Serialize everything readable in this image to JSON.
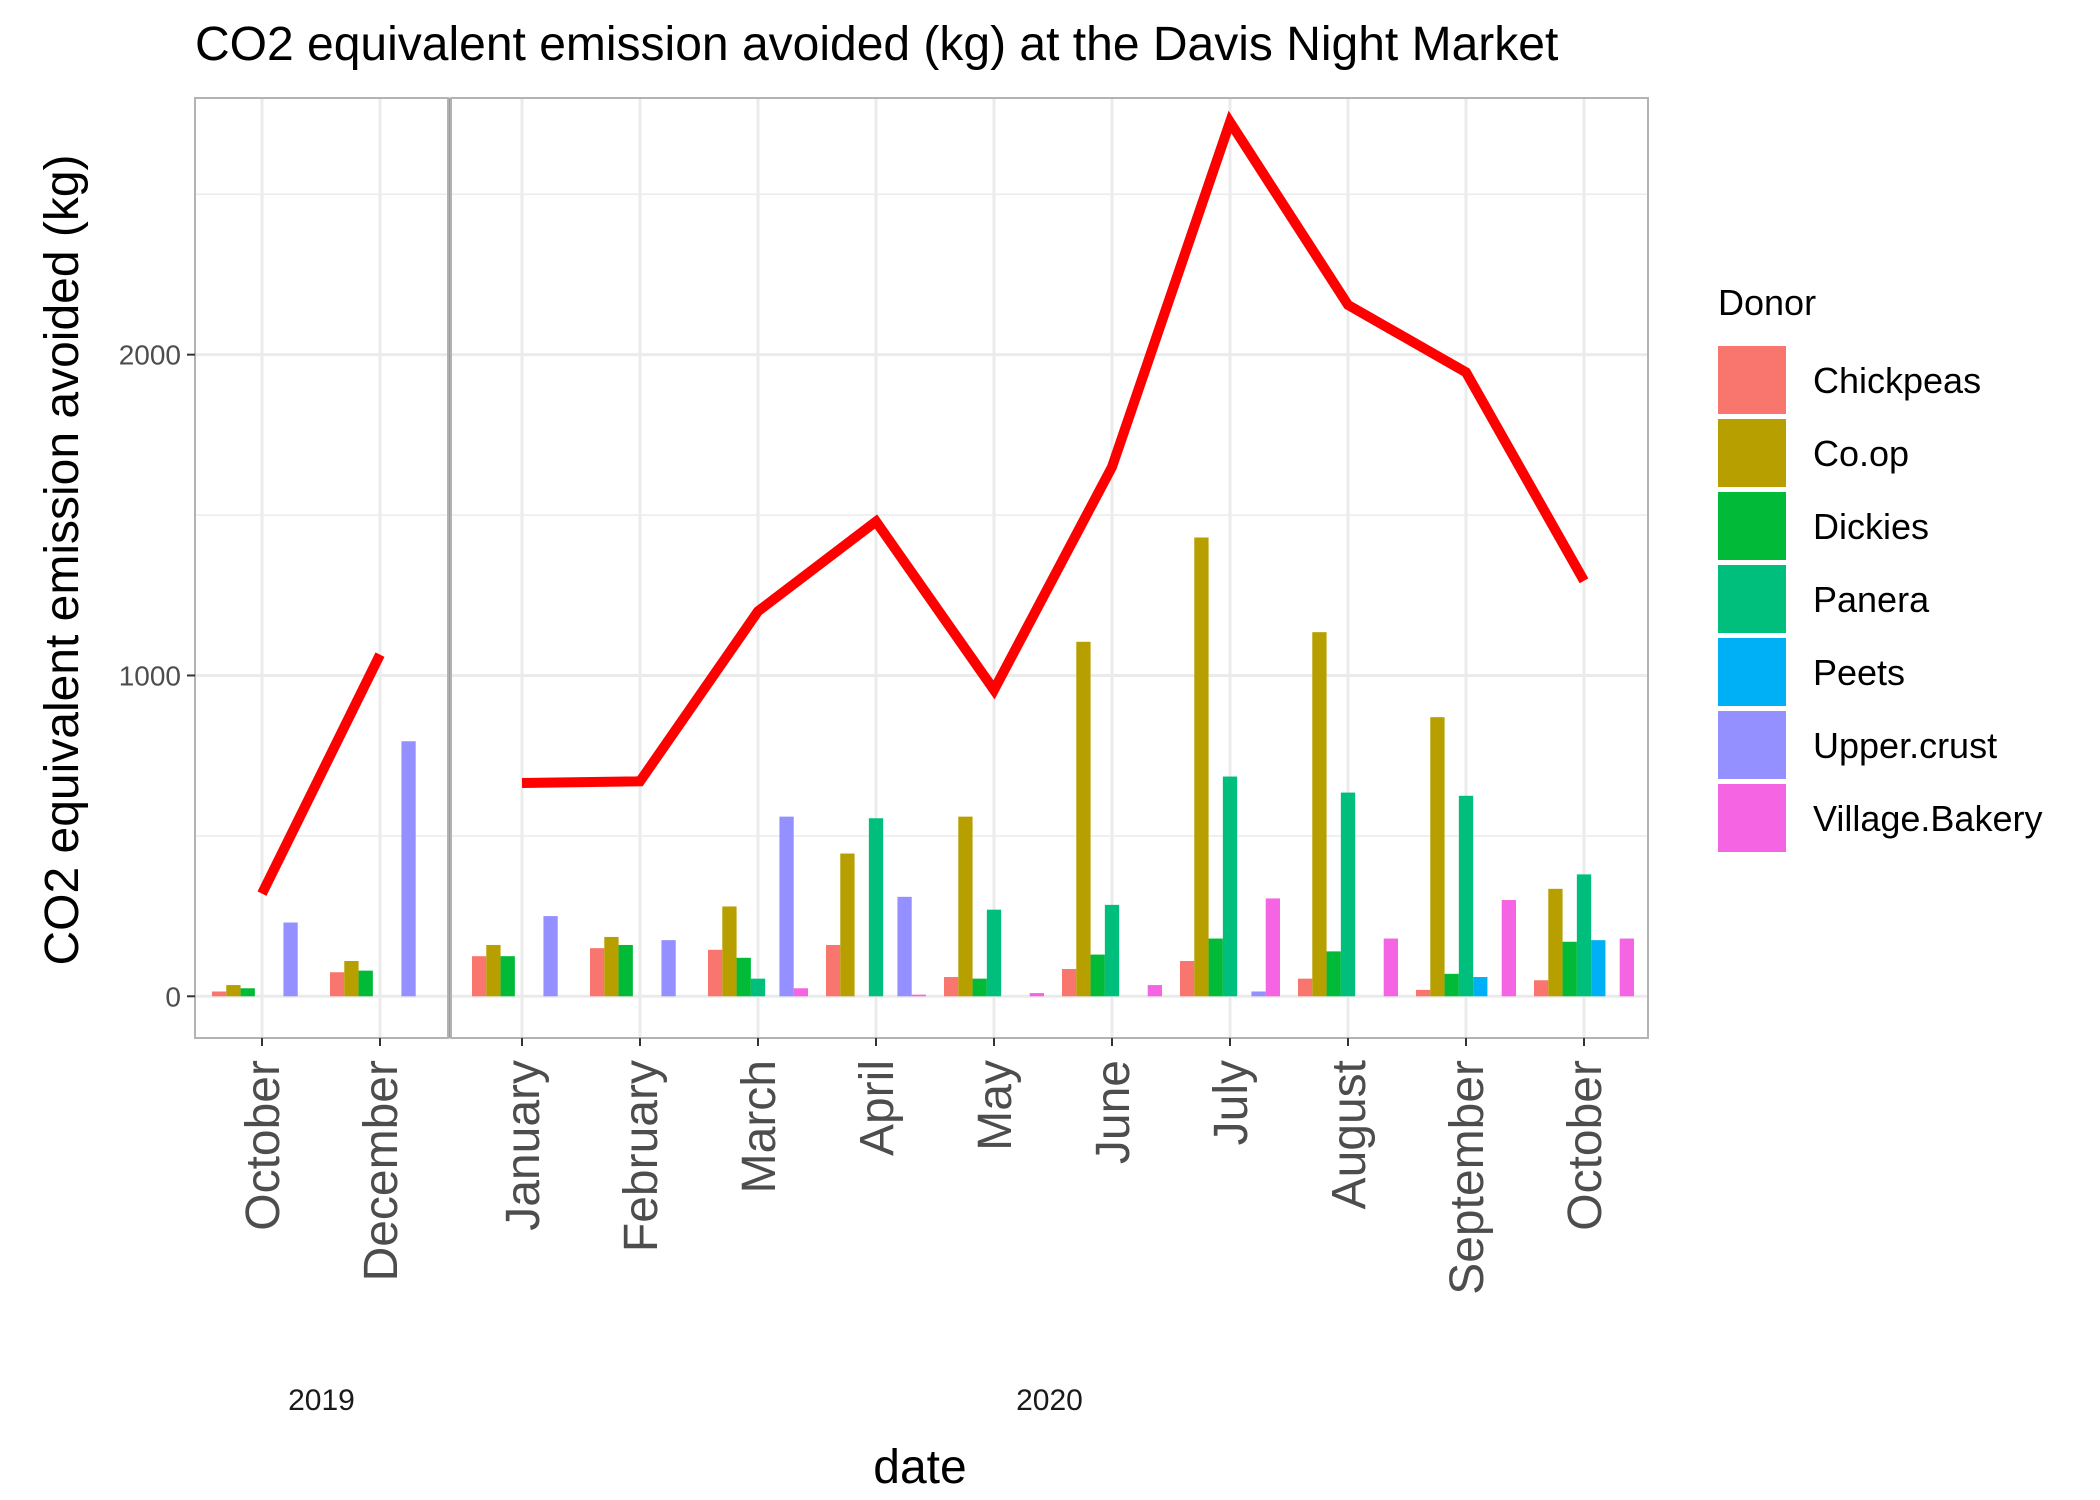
{
  "chart_data": {
    "type": "bar",
    "title": "CO2 equivalent emission avoided (kg) at the Davis Night Market",
    "xlabel": "date",
    "ylabel": "CO2 equivalent emission avoided (kg)",
    "ylim": [
      -130,
      2800
    ],
    "yticks": [
      0,
      1000,
      2000
    ],
    "grid": true,
    "legend": {
      "title": "Donor",
      "position": "right"
    },
    "facets": [
      "2019",
      "2020"
    ],
    "categories": [
      {
        "label": "October",
        "facet": "2019"
      },
      {
        "label": "December",
        "facet": "2019"
      },
      {
        "label": "January",
        "facet": "2020"
      },
      {
        "label": "February",
        "facet": "2020"
      },
      {
        "label": "March",
        "facet": "2020"
      },
      {
        "label": "April",
        "facet": "2020"
      },
      {
        "label": "May",
        "facet": "2020"
      },
      {
        "label": "June",
        "facet": "2020"
      },
      {
        "label": "July",
        "facet": "2020"
      },
      {
        "label": "August",
        "facet": "2020"
      },
      {
        "label": "September",
        "facet": "2020"
      },
      {
        "label": "October",
        "facet": "2020"
      }
    ],
    "series": [
      {
        "name": "Chickpeas",
        "color": "#F8766D",
        "values": [
          15,
          75,
          125,
          150,
          145,
          160,
          60,
          85,
          110,
          55,
          20,
          50
        ]
      },
      {
        "name": "Co.op",
        "color": "#B79F00",
        "values": [
          35,
          110,
          160,
          185,
          280,
          445,
          560,
          1105,
          1430,
          1135,
          870,
          335
        ]
      },
      {
        "name": "Dickies",
        "color": "#00BA38",
        "values": [
          25,
          80,
          125,
          160,
          120,
          null,
          55,
          130,
          180,
          140,
          70,
          170
        ]
      },
      {
        "name": "Panera",
        "color": "#00BF7D",
        "values": [
          null,
          null,
          null,
          null,
          55,
          555,
          270,
          285,
          685,
          635,
          625,
          380
        ]
      },
      {
        "name": "Peets",
        "color": "#00B0F6",
        "values": [
          null,
          null,
          null,
          null,
          null,
          null,
          null,
          null,
          null,
          null,
          60,
          175
        ]
      },
      {
        "name": "Upper.crust",
        "color": "#9590FF",
        "values": [
          230,
          795,
          250,
          175,
          560,
          310,
          null,
          null,
          15,
          null,
          null,
          null
        ]
      },
      {
        "name": "Village.Bakery",
        "color": "#F564E3",
        "values": [
          null,
          null,
          null,
          null,
          25,
          5,
          10,
          35,
          305,
          180,
          300,
          180
        ]
      }
    ],
    "total_line": {
      "color": "#FF0000",
      "values": [
        320,
        1065,
        665,
        670,
        1200,
        1480,
        955,
        1650,
        2725,
        2155,
        1945,
        1295
      ]
    }
  }
}
